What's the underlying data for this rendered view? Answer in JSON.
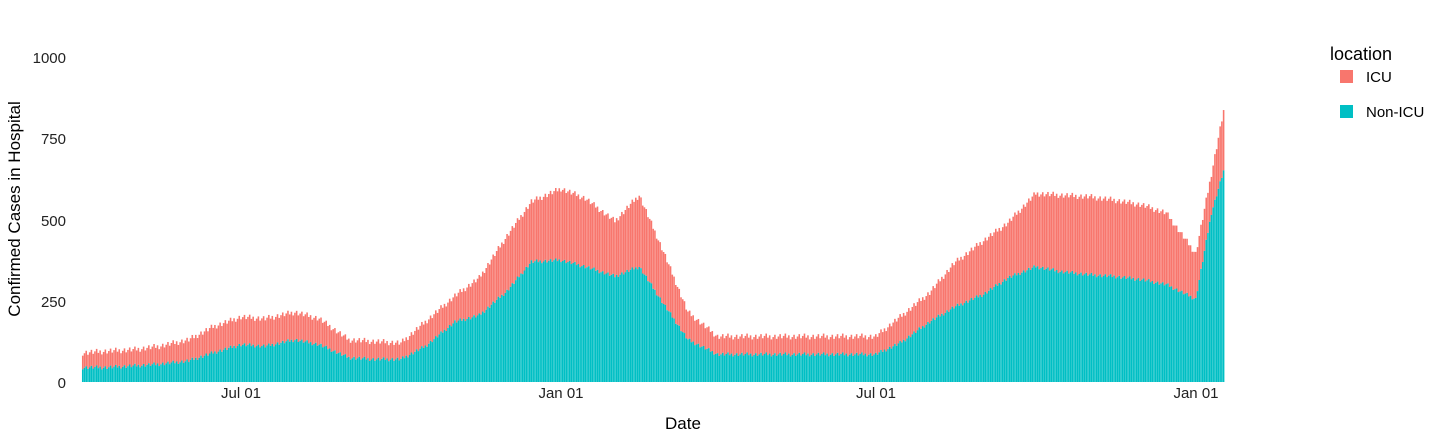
{
  "chart_data": {
    "type": "bar",
    "stacked": true,
    "xlabel": "Date",
    "ylabel": "Confirmed Cases in Hospital",
    "ylim": [
      0,
      1000
    ],
    "yticks": [
      "0",
      "250",
      "500",
      "750",
      "1000"
    ],
    "xticks": [
      "Jul 01",
      "Jan 01",
      "Jul 01",
      "Jan 01"
    ],
    "grid": false,
    "legend": {
      "title": "location",
      "placement": "right"
    },
    "series": [
      {
        "name": "ICU",
        "color": "#F8766D"
      },
      {
        "name": "Non-ICU",
        "color": "#00BFC4"
      }
    ],
    "dates": [
      "2020-04-01",
      "2020-04-15",
      "2020-05-01",
      "2020-05-15",
      "2020-06-01",
      "2020-06-15",
      "2020-07-01",
      "2020-07-15",
      "2020-08-01",
      "2020-08-15",
      "2020-09-01",
      "2020-09-15",
      "2020-10-01",
      "2020-10-15",
      "2020-11-01",
      "2020-11-15",
      "2020-12-01",
      "2020-12-15",
      "2021-01-01",
      "2021-01-15",
      "2021-02-01",
      "2021-02-15",
      "2021-03-01",
      "2021-03-15",
      "2021-04-01",
      "2021-04-15",
      "2021-05-01",
      "2021-05-15",
      "2021-06-01",
      "2021-06-15",
      "2021-07-01",
      "2021-07-15",
      "2021-08-01",
      "2021-08-15",
      "2021-09-01",
      "2021-09-15",
      "2021-10-01",
      "2021-10-15",
      "2021-11-01",
      "2021-11-15",
      "2021-12-01",
      "2021-12-15",
      "2022-01-01",
      "2022-01-10",
      "2022-01-17"
    ],
    "total": [
      90,
      95,
      100,
      110,
      130,
      170,
      200,
      195,
      215,
      195,
      130,
      125,
      120,
      185,
      265,
      320,
      450,
      555,
      595,
      565,
      495,
      575,
      400,
      215,
      140,
      140,
      140,
      140,
      140,
      140,
      140,
      200,
      275,
      365,
      435,
      490,
      580,
      575,
      570,
      560,
      545,
      520,
      395,
      640,
      835
    ],
    "non_icu": [
      45,
      45,
      50,
      55,
      65,
      90,
      115,
      110,
      130,
      115,
      75,
      70,
      70,
      110,
      185,
      205,
      280,
      370,
      375,
      355,
      325,
      355,
      240,
      130,
      85,
      85,
      85,
      85,
      85,
      85,
      85,
      120,
      185,
      230,
      270,
      320,
      355,
      340,
      330,
      325,
      315,
      300,
      255,
      520,
      650
    ]
  }
}
